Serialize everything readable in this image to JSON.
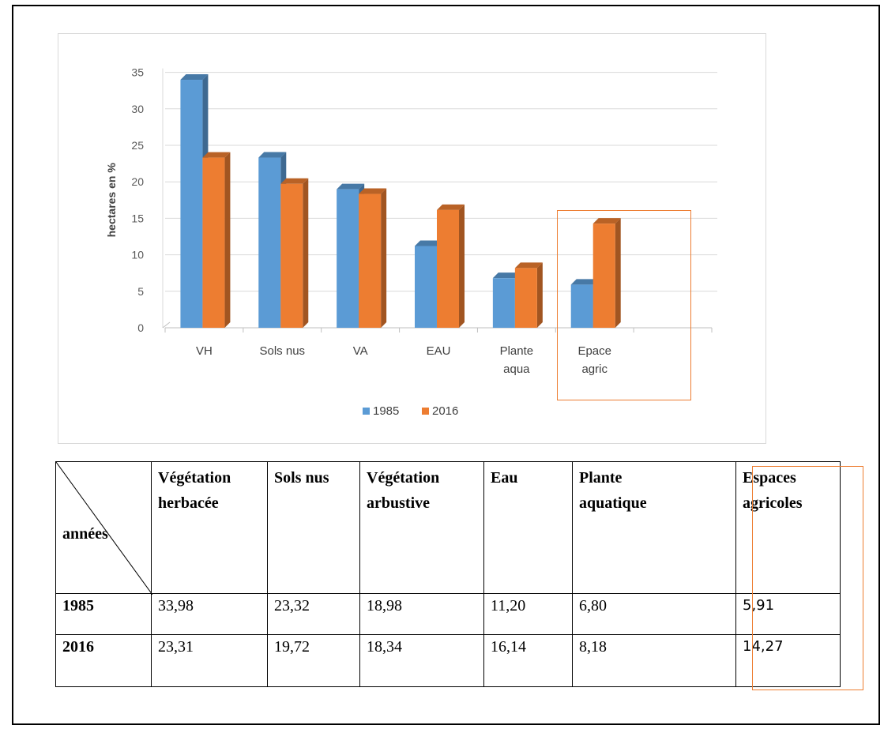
{
  "chart_data": {
    "type": "bar",
    "title": "",
    "xlabel": "",
    "ylabel": "hectares en %",
    "ylim": [
      0,
      35
    ],
    "yticks": [
      0,
      5,
      10,
      15,
      20,
      25,
      30,
      35
    ],
    "categories": [
      "VH",
      "Sols nus",
      "VA",
      "EAU",
      "Plante aqua",
      "Epace agric"
    ],
    "series": [
      {
        "name": "1985",
        "color": "#5b9bd5",
        "values": [
          33.98,
          23.32,
          18.98,
          11.2,
          6.8,
          5.91
        ]
      },
      {
        "name": "2016",
        "color": "#ed7d31",
        "values": [
          23.31,
          19.72,
          18.34,
          16.14,
          8.18,
          14.27
        ]
      }
    ],
    "grid": true,
    "legend": "bottom"
  },
  "table": {
    "corner_label": "années",
    "headers": [
      [
        "Végétation",
        "herbacée"
      ],
      [
        "Sols nus"
      ],
      [
        "Végétation",
        "arbustive"
      ],
      [
        "Eau"
      ],
      [
        "Plante",
        "aquatique"
      ],
      [
        "Espaces",
        "agricoles"
      ]
    ],
    "rows": [
      {
        "year": "1985",
        "values": [
          "33,98",
          "23,32",
          "18,98",
          "11,20",
          "6,80",
          "5,91"
        ]
      },
      {
        "year": "2016",
        "values": [
          "23,31",
          "19,72",
          "18,34",
          "16,14",
          "8,18",
          "14,27"
        ]
      }
    ]
  }
}
